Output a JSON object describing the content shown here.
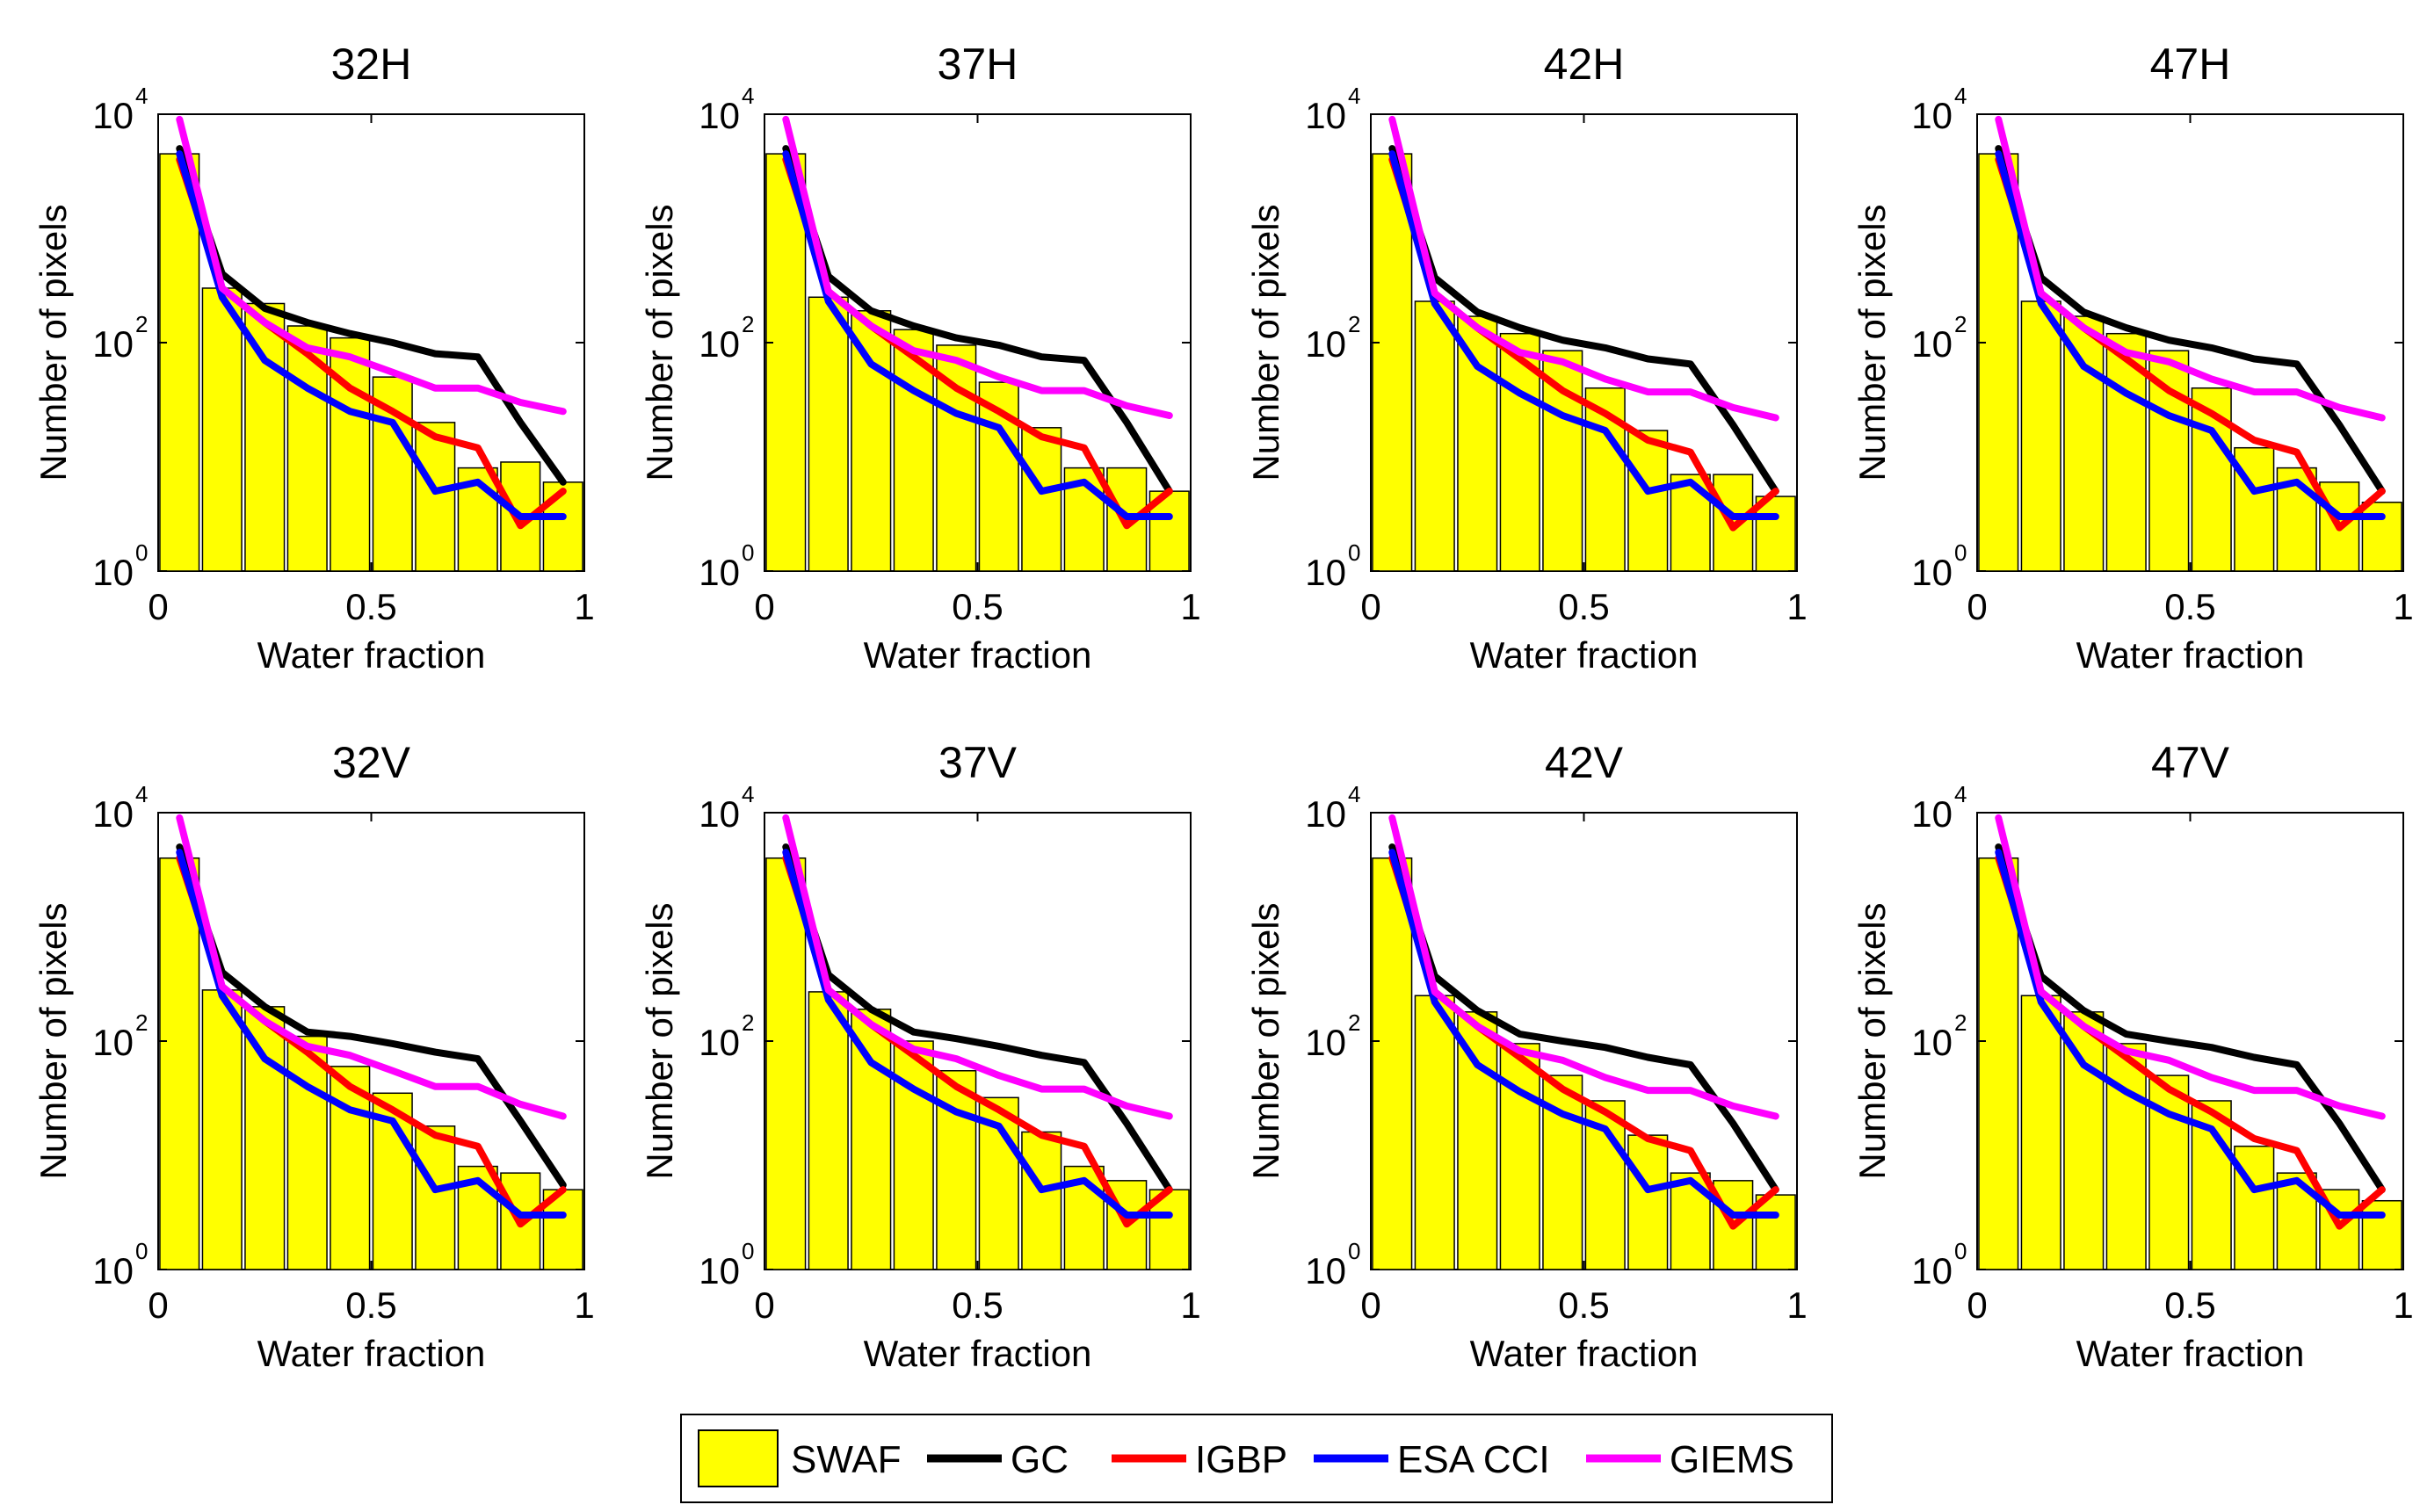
{
  "figure_colors": {
    "bar_fill": "#FFFF00",
    "bar_stroke": "#000000"
  },
  "legend": {
    "items": [
      {
        "label": "SWAF",
        "kind": "bar",
        "color": "#FFFF00"
      },
      {
        "label": "GC",
        "kind": "line",
        "color": "#000000"
      },
      {
        "label": "IGBP",
        "kind": "line",
        "color": "#FF0000"
      },
      {
        "label": "ESA CCI",
        "kind": "line",
        "color": "#0000FF"
      },
      {
        "label": "GIEMS",
        "kind": "line",
        "color": "#FF00FF"
      }
    ]
  },
  "chart_data": [
    {
      "type": "bar+line",
      "title": "32H",
      "xlabel": "Water fraction",
      "ylabel": "Number of pixels",
      "xlim": [
        0,
        1
      ],
      "yscale": "log",
      "ylim": [
        1,
        10000
      ],
      "xticks": [
        "0",
        "0.5",
        "1"
      ],
      "yticks": [
        {
          "base": "10",
          "exp": "0"
        },
        {
          "base": "10",
          "exp": "2"
        },
        {
          "base": "10",
          "exp": "4"
        }
      ],
      "categories": [
        0.05,
        0.15,
        0.25,
        0.35,
        0.45,
        0.55,
        0.65,
        0.75,
        0.85,
        0.95
      ],
      "series": [
        {
          "name": "SWAF",
          "values": [
            4500,
            300,
            220,
            140,
            110,
            50,
            20,
            8,
            9,
            6
          ]
        },
        {
          "name": "GC",
          "values": [
            5000,
            400,
            200,
            150,
            120,
            100,
            80,
            75,
            20,
            6
          ]
        },
        {
          "name": "IGBP",
          "values": [
            4000,
            300,
            150,
            80,
            40,
            25,
            15,
            12,
            2.5,
            5
          ]
        },
        {
          "name": "ESA CCI",
          "values": [
            4500,
            250,
            70,
            40,
            25,
            20,
            5,
            6,
            3,
            3
          ]
        },
        {
          "name": "GIEMS",
          "values": [
            9000,
            300,
            150,
            90,
            75,
            55,
            40,
            40,
            30,
            25
          ]
        }
      ]
    },
    {
      "type": "bar+line",
      "title": "37H",
      "xlabel": "Water fraction",
      "ylabel": "Number of pixels",
      "xlim": [
        0,
        1
      ],
      "yscale": "log",
      "ylim": [
        1,
        10000
      ],
      "xticks": [
        "0",
        "0.5",
        "1"
      ],
      "yticks": [
        {
          "base": "10",
          "exp": "0"
        },
        {
          "base": "10",
          "exp": "2"
        },
        {
          "base": "10",
          "exp": "4"
        }
      ],
      "categories": [
        0.05,
        0.15,
        0.25,
        0.35,
        0.45,
        0.55,
        0.65,
        0.75,
        0.85,
        0.95
      ],
      "series": [
        {
          "name": "SWAF",
          "values": [
            4500,
            250,
            190,
            130,
            95,
            45,
            18,
            8,
            8,
            5
          ]
        },
        {
          "name": "GC",
          "values": [
            5000,
            380,
            190,
            140,
            110,
            95,
            75,
            70,
            20,
            5
          ]
        },
        {
          "name": "IGBP",
          "values": [
            4000,
            280,
            140,
            75,
            40,
            25,
            15,
            12,
            2.5,
            5
          ]
        },
        {
          "name": "ESA CCI",
          "values": [
            4500,
            230,
            65,
            38,
            24,
            18,
            5,
            6,
            3,
            3
          ]
        },
        {
          "name": "GIEMS",
          "values": [
            9000,
            280,
            140,
            85,
            70,
            50,
            38,
            38,
            28,
            23
          ]
        }
      ]
    },
    {
      "type": "bar+line",
      "title": "42H",
      "xlabel": "Water fraction",
      "ylabel": "Number of pixels",
      "xlim": [
        0,
        1
      ],
      "yscale": "log",
      "ylim": [
        1,
        10000
      ],
      "xticks": [
        "0",
        "0.5",
        "1"
      ],
      "yticks": [
        {
          "base": "10",
          "exp": "0"
        },
        {
          "base": "10",
          "exp": "2"
        },
        {
          "base": "10",
          "exp": "4"
        }
      ],
      "categories": [
        0.05,
        0.15,
        0.25,
        0.35,
        0.45,
        0.55,
        0.65,
        0.75,
        0.85,
        0.95
      ],
      "series": [
        {
          "name": "SWAF",
          "values": [
            4500,
            230,
            170,
            120,
            85,
            40,
            17,
            7,
            7,
            4.5
          ]
        },
        {
          "name": "GC",
          "values": [
            5000,
            370,
            185,
            135,
            105,
            90,
            72,
            65,
            19,
            5
          ]
        },
        {
          "name": "IGBP",
          "values": [
            4000,
            270,
            135,
            72,
            38,
            24,
            14,
            11,
            2.4,
            5
          ]
        },
        {
          "name": "ESA CCI",
          "values": [
            4500,
            220,
            62,
            36,
            23,
            17,
            5,
            6,
            3,
            3
          ]
        },
        {
          "name": "GIEMS",
          "values": [
            9000,
            270,
            135,
            82,
            68,
            48,
            37,
            37,
            27,
            22
          ]
        }
      ]
    },
    {
      "type": "bar+line",
      "title": "47H",
      "xlabel": "Water fraction",
      "ylabel": "Number of pixels",
      "xlim": [
        0,
        1
      ],
      "yscale": "log",
      "ylim": [
        1,
        10000
      ],
      "xticks": [
        "0",
        "0.5",
        "1"
      ],
      "yticks": [
        {
          "base": "10",
          "exp": "0"
        },
        {
          "base": "10",
          "exp": "2"
        },
        {
          "base": "10",
          "exp": "4"
        }
      ],
      "categories": [
        0.05,
        0.15,
        0.25,
        0.35,
        0.45,
        0.55,
        0.65,
        0.75,
        0.85,
        0.95
      ],
      "series": [
        {
          "name": "SWAF",
          "values": [
            4500,
            230,
            170,
            120,
            85,
            40,
            12,
            8,
            6,
            4
          ]
        },
        {
          "name": "GC",
          "values": [
            5000,
            370,
            185,
            135,
            105,
            90,
            72,
            65,
            19,
            5
          ]
        },
        {
          "name": "IGBP",
          "values": [
            4000,
            270,
            135,
            72,
            38,
            24,
            14,
            11,
            2.4,
            5
          ]
        },
        {
          "name": "ESA CCI",
          "values": [
            4500,
            220,
            62,
            36,
            23,
            17,
            5,
            6,
            3,
            3
          ]
        },
        {
          "name": "GIEMS",
          "values": [
            9000,
            270,
            135,
            82,
            68,
            48,
            37,
            37,
            27,
            22
          ]
        }
      ]
    },
    {
      "type": "bar+line",
      "title": "32V",
      "xlabel": "Water fraction",
      "ylabel": "Number of pixels",
      "xlim": [
        0,
        1
      ],
      "yscale": "log",
      "ylim": [
        1,
        10000
      ],
      "xticks": [
        "0",
        "0.5",
        "1"
      ],
      "yticks": [
        {
          "base": "10",
          "exp": "0"
        },
        {
          "base": "10",
          "exp": "2"
        },
        {
          "base": "10",
          "exp": "4"
        }
      ],
      "categories": [
        0.05,
        0.15,
        0.25,
        0.35,
        0.45,
        0.55,
        0.65,
        0.75,
        0.85,
        0.95
      ],
      "series": [
        {
          "name": "SWAF",
          "values": [
            4000,
            280,
            200,
            110,
            60,
            35,
            18,
            8,
            7,
            5
          ]
        },
        {
          "name": "GC",
          "values": [
            5000,
            400,
            200,
            120,
            110,
            95,
            80,
            70,
            20,
            5.5
          ]
        },
        {
          "name": "IGBP",
          "values": [
            4000,
            300,
            150,
            80,
            40,
            25,
            15,
            12,
            2.5,
            5
          ]
        },
        {
          "name": "ESA CCI",
          "values": [
            4500,
            250,
            70,
            40,
            25,
            20,
            5,
            6,
            3,
            3
          ]
        },
        {
          "name": "GIEMS",
          "values": [
            9000,
            300,
            150,
            90,
            75,
            55,
            40,
            40,
            28,
            22
          ]
        }
      ]
    },
    {
      "type": "bar+line",
      "title": "37V",
      "xlabel": "Water fraction",
      "ylabel": "Number of pixels",
      "xlim": [
        0,
        1
      ],
      "yscale": "log",
      "ylim": [
        1,
        10000
      ],
      "xticks": [
        "0",
        "0.5",
        "1"
      ],
      "yticks": [
        {
          "base": "10",
          "exp": "0"
        },
        {
          "base": "10",
          "exp": "2"
        },
        {
          "base": "10",
          "exp": "4"
        }
      ],
      "categories": [
        0.05,
        0.15,
        0.25,
        0.35,
        0.45,
        0.55,
        0.65,
        0.75,
        0.85,
        0.95
      ],
      "series": [
        {
          "name": "SWAF",
          "values": [
            4000,
            270,
            190,
            100,
            55,
            32,
            16,
            8,
            6,
            5
          ]
        },
        {
          "name": "GC",
          "values": [
            5000,
            380,
            190,
            120,
            105,
            90,
            75,
            65,
            19,
            5
          ]
        },
        {
          "name": "IGBP",
          "values": [
            4000,
            280,
            140,
            75,
            40,
            25,
            15,
            12,
            2.5,
            5
          ]
        },
        {
          "name": "ESA CCI",
          "values": [
            4500,
            230,
            65,
            38,
            24,
            18,
            5,
            6,
            3,
            3
          ]
        },
        {
          "name": "GIEMS",
          "values": [
            9000,
            280,
            140,
            85,
            70,
            50,
            38,
            38,
            27,
            22
          ]
        }
      ]
    },
    {
      "type": "bar+line",
      "title": "42V",
      "xlabel": "Water fraction",
      "ylabel": "Number of pixels",
      "xlim": [
        0,
        1
      ],
      "yscale": "log",
      "ylim": [
        1,
        10000
      ],
      "xticks": [
        "0",
        "0.5",
        "1"
      ],
      "yticks": [
        {
          "base": "10",
          "exp": "0"
        },
        {
          "base": "10",
          "exp": "2"
        },
        {
          "base": "10",
          "exp": "4"
        }
      ],
      "categories": [
        0.05,
        0.15,
        0.25,
        0.35,
        0.45,
        0.55,
        0.65,
        0.75,
        0.85,
        0.95
      ],
      "series": [
        {
          "name": "SWAF",
          "values": [
            4000,
            250,
            180,
            95,
            50,
            30,
            15,
            7,
            6,
            4.5
          ]
        },
        {
          "name": "GC",
          "values": [
            5000,
            370,
            185,
            115,
            100,
            88,
            72,
            62,
            19,
            5
          ]
        },
        {
          "name": "IGBP",
          "values": [
            4000,
            270,
            135,
            72,
            38,
            24,
            14,
            11,
            2.4,
            5
          ]
        },
        {
          "name": "ESA CCI",
          "values": [
            4500,
            220,
            62,
            36,
            23,
            17,
            5,
            6,
            3,
            3
          ]
        },
        {
          "name": "GIEMS",
          "values": [
            9000,
            270,
            135,
            82,
            68,
            48,
            37,
            37,
            27,
            22
          ]
        }
      ]
    },
    {
      "type": "bar+line",
      "title": "47V",
      "xlabel": "Water fraction",
      "ylabel": "Number of pixels",
      "xlim": [
        0,
        1
      ],
      "yscale": "log",
      "ylim": [
        1,
        10000
      ],
      "xticks": [
        "0",
        "0.5",
        "1"
      ],
      "yticks": [
        {
          "base": "10",
          "exp": "0"
        },
        {
          "base": "10",
          "exp": "2"
        },
        {
          "base": "10",
          "exp": "4"
        }
      ],
      "categories": [
        0.05,
        0.15,
        0.25,
        0.35,
        0.45,
        0.55,
        0.65,
        0.75,
        0.85,
        0.95
      ],
      "series": [
        {
          "name": "SWAF",
          "values": [
            4000,
            250,
            180,
            95,
            50,
            30,
            12,
            7,
            5,
            4
          ]
        },
        {
          "name": "GC",
          "values": [
            5000,
            370,
            185,
            115,
            100,
            88,
            72,
            62,
            19,
            5
          ]
        },
        {
          "name": "IGBP",
          "values": [
            4000,
            270,
            135,
            72,
            38,
            24,
            14,
            11,
            2.4,
            5
          ]
        },
        {
          "name": "ESA CCI",
          "values": [
            4500,
            220,
            62,
            36,
            23,
            17,
            5,
            6,
            3,
            3
          ]
        },
        {
          "name": "GIEMS",
          "values": [
            9000,
            270,
            135,
            82,
            68,
            48,
            37,
            37,
            27,
            22
          ]
        }
      ]
    }
  ]
}
